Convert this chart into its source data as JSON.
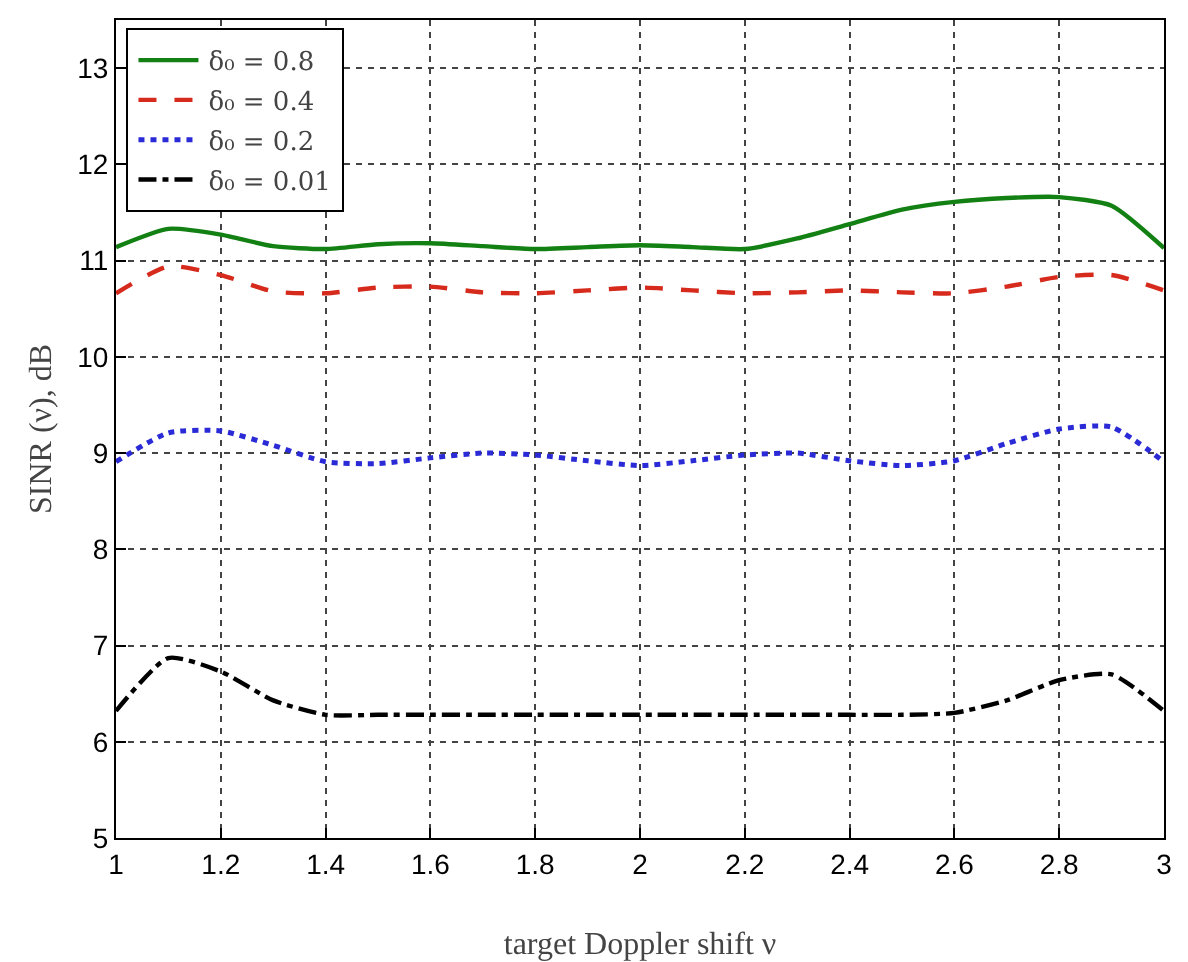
{
  "chart_data": {
    "type": "line",
    "xlabel": "target Doppler shift ν",
    "ylabel": "SINR (ν), dB",
    "x": [
      1,
      1.1,
      1.2,
      1.3,
      1.4,
      1.5,
      1.6,
      1.7,
      1.8,
      1.9,
      2,
      2.1,
      2.2,
      2.3,
      2.4,
      2.5,
      2.6,
      2.7,
      2.8,
      2.9,
      3
    ],
    "series": [
      {
        "name": "δ₀ = 0.8",
        "color": "#138013",
        "line_style": "solid",
        "values": [
          11.14,
          11.33,
          11.27,
          11.15,
          11.12,
          11.17,
          11.18,
          11.15,
          11.12,
          11.14,
          11.16,
          11.14,
          11.12,
          11.23,
          11.38,
          11.53,
          11.61,
          11.65,
          11.66,
          11.57,
          11.13
        ]
      },
      {
        "name": "δ₀ = 0.4",
        "color": "#d62a1c",
        "line_style": "dashed",
        "values": [
          10.66,
          10.94,
          10.85,
          10.68,
          10.66,
          10.72,
          10.73,
          10.67,
          10.66,
          10.69,
          10.72,
          10.69,
          10.66,
          10.67,
          10.69,
          10.67,
          10.66,
          10.73,
          10.83,
          10.85,
          10.69
        ]
      },
      {
        "name": "δ₀ = 0.2",
        "color": "#2a2ad6",
        "line_style": "dotted",
        "values": [
          8.91,
          9.21,
          9.23,
          9.08,
          8.91,
          8.89,
          8.95,
          9.0,
          8.98,
          8.92,
          8.87,
          8.92,
          8.98,
          9.0,
          8.92,
          8.87,
          8.92,
          9.1,
          9.25,
          9.27,
          8.91
        ]
      },
      {
        "name": "δ₀ = 0.01",
        "color": "#000000",
        "line_style": "dashdot",
        "values": [
          6.32,
          6.87,
          6.73,
          6.43,
          6.28,
          6.28,
          6.28,
          6.28,
          6.28,
          6.28,
          6.28,
          6.28,
          6.28,
          6.28,
          6.28,
          6.28,
          6.3,
          6.43,
          6.64,
          6.7,
          6.32
        ]
      }
    ],
    "xlim": [
      1,
      3
    ],
    "xticks": [
      1,
      1.2,
      1.4,
      1.6,
      1.8,
      2,
      2.2,
      2.4,
      2.6,
      2.8,
      3
    ],
    "ylim": [
      5,
      13.5
    ],
    "yticks": [
      5,
      6,
      7,
      8,
      9,
      10,
      11,
      12,
      13
    ],
    "grid": true,
    "legend": "top left",
    "marker": "none"
  }
}
